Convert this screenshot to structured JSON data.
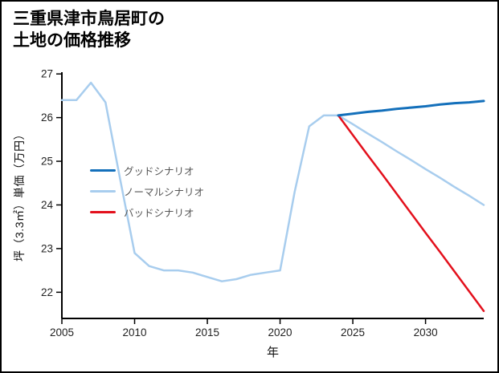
{
  "chart_data": {
    "type": "line",
    "title": "三重県津市鳥居町の\n土地の価格推移",
    "xlabel": "年",
    "ylabel": "坪（3.3㎡）単価（万円）",
    "xlim": [
      2005,
      2034
    ],
    "ylim": [
      21.4,
      27.04
    ],
    "xticks": [
      2005,
      2010,
      2015,
      2020,
      2025,
      2030
    ],
    "yticks": [
      22,
      23,
      24,
      25,
      26,
      27
    ],
    "grid": false,
    "legend": {
      "position": "center-left-inside",
      "frame": false
    },
    "draw_order": [
      1,
      2,
      0
    ],
    "series": [
      {
        "key": "good-scenario",
        "name": "グッドシナリオ",
        "color": "#1470bb",
        "width": 3,
        "x": [
          2024,
          2025,
          2026,
          2027,
          2028,
          2029,
          2030,
          2031,
          2032,
          2033,
          2034
        ],
        "values": [
          26.05,
          26.09,
          26.13,
          26.16,
          26.2,
          26.23,
          26.26,
          26.3,
          26.33,
          26.35,
          26.38
        ]
      },
      {
        "key": "normal-scenario",
        "name": "ノーマルシナリオ",
        "color": "#a8cdee",
        "width": 2.5,
        "x": [
          2005,
          2006,
          2007,
          2008,
          2009,
          2010,
          2011,
          2012,
          2013,
          2014,
          2015,
          2016,
          2017,
          2018,
          2019,
          2020,
          2021,
          2022,
          2023,
          2024,
          2025,
          2026,
          2027,
          2028,
          2029,
          2030,
          2031,
          2032,
          2033,
          2034
        ],
        "values": [
          26.4,
          26.4,
          26.8,
          26.35,
          24.6,
          22.9,
          22.6,
          22.5,
          22.5,
          22.45,
          22.35,
          22.25,
          22.3,
          22.4,
          22.45,
          22.5,
          24.3,
          25.8,
          26.05,
          26.05,
          25.85,
          25.64,
          25.44,
          25.23,
          25.03,
          24.82,
          24.62,
          24.41,
          24.21,
          24.0
        ]
      },
      {
        "key": "bad-scenario",
        "name": "バッドシナリオ",
        "color": "#e3101c",
        "width": 2.5,
        "x": [
          2024,
          2025,
          2026,
          2027,
          2028,
          2029,
          2030,
          2031,
          2032,
          2033,
          2034
        ],
        "values": [
          26.05,
          25.6,
          25.15,
          24.71,
          24.26,
          23.81,
          23.36,
          22.92,
          22.47,
          22.02,
          21.57
        ]
      }
    ],
    "colors": {
      "axis": "#000000",
      "tick_label": "#222222",
      "legend_text": "#555555",
      "background": "#ffffff"
    }
  }
}
